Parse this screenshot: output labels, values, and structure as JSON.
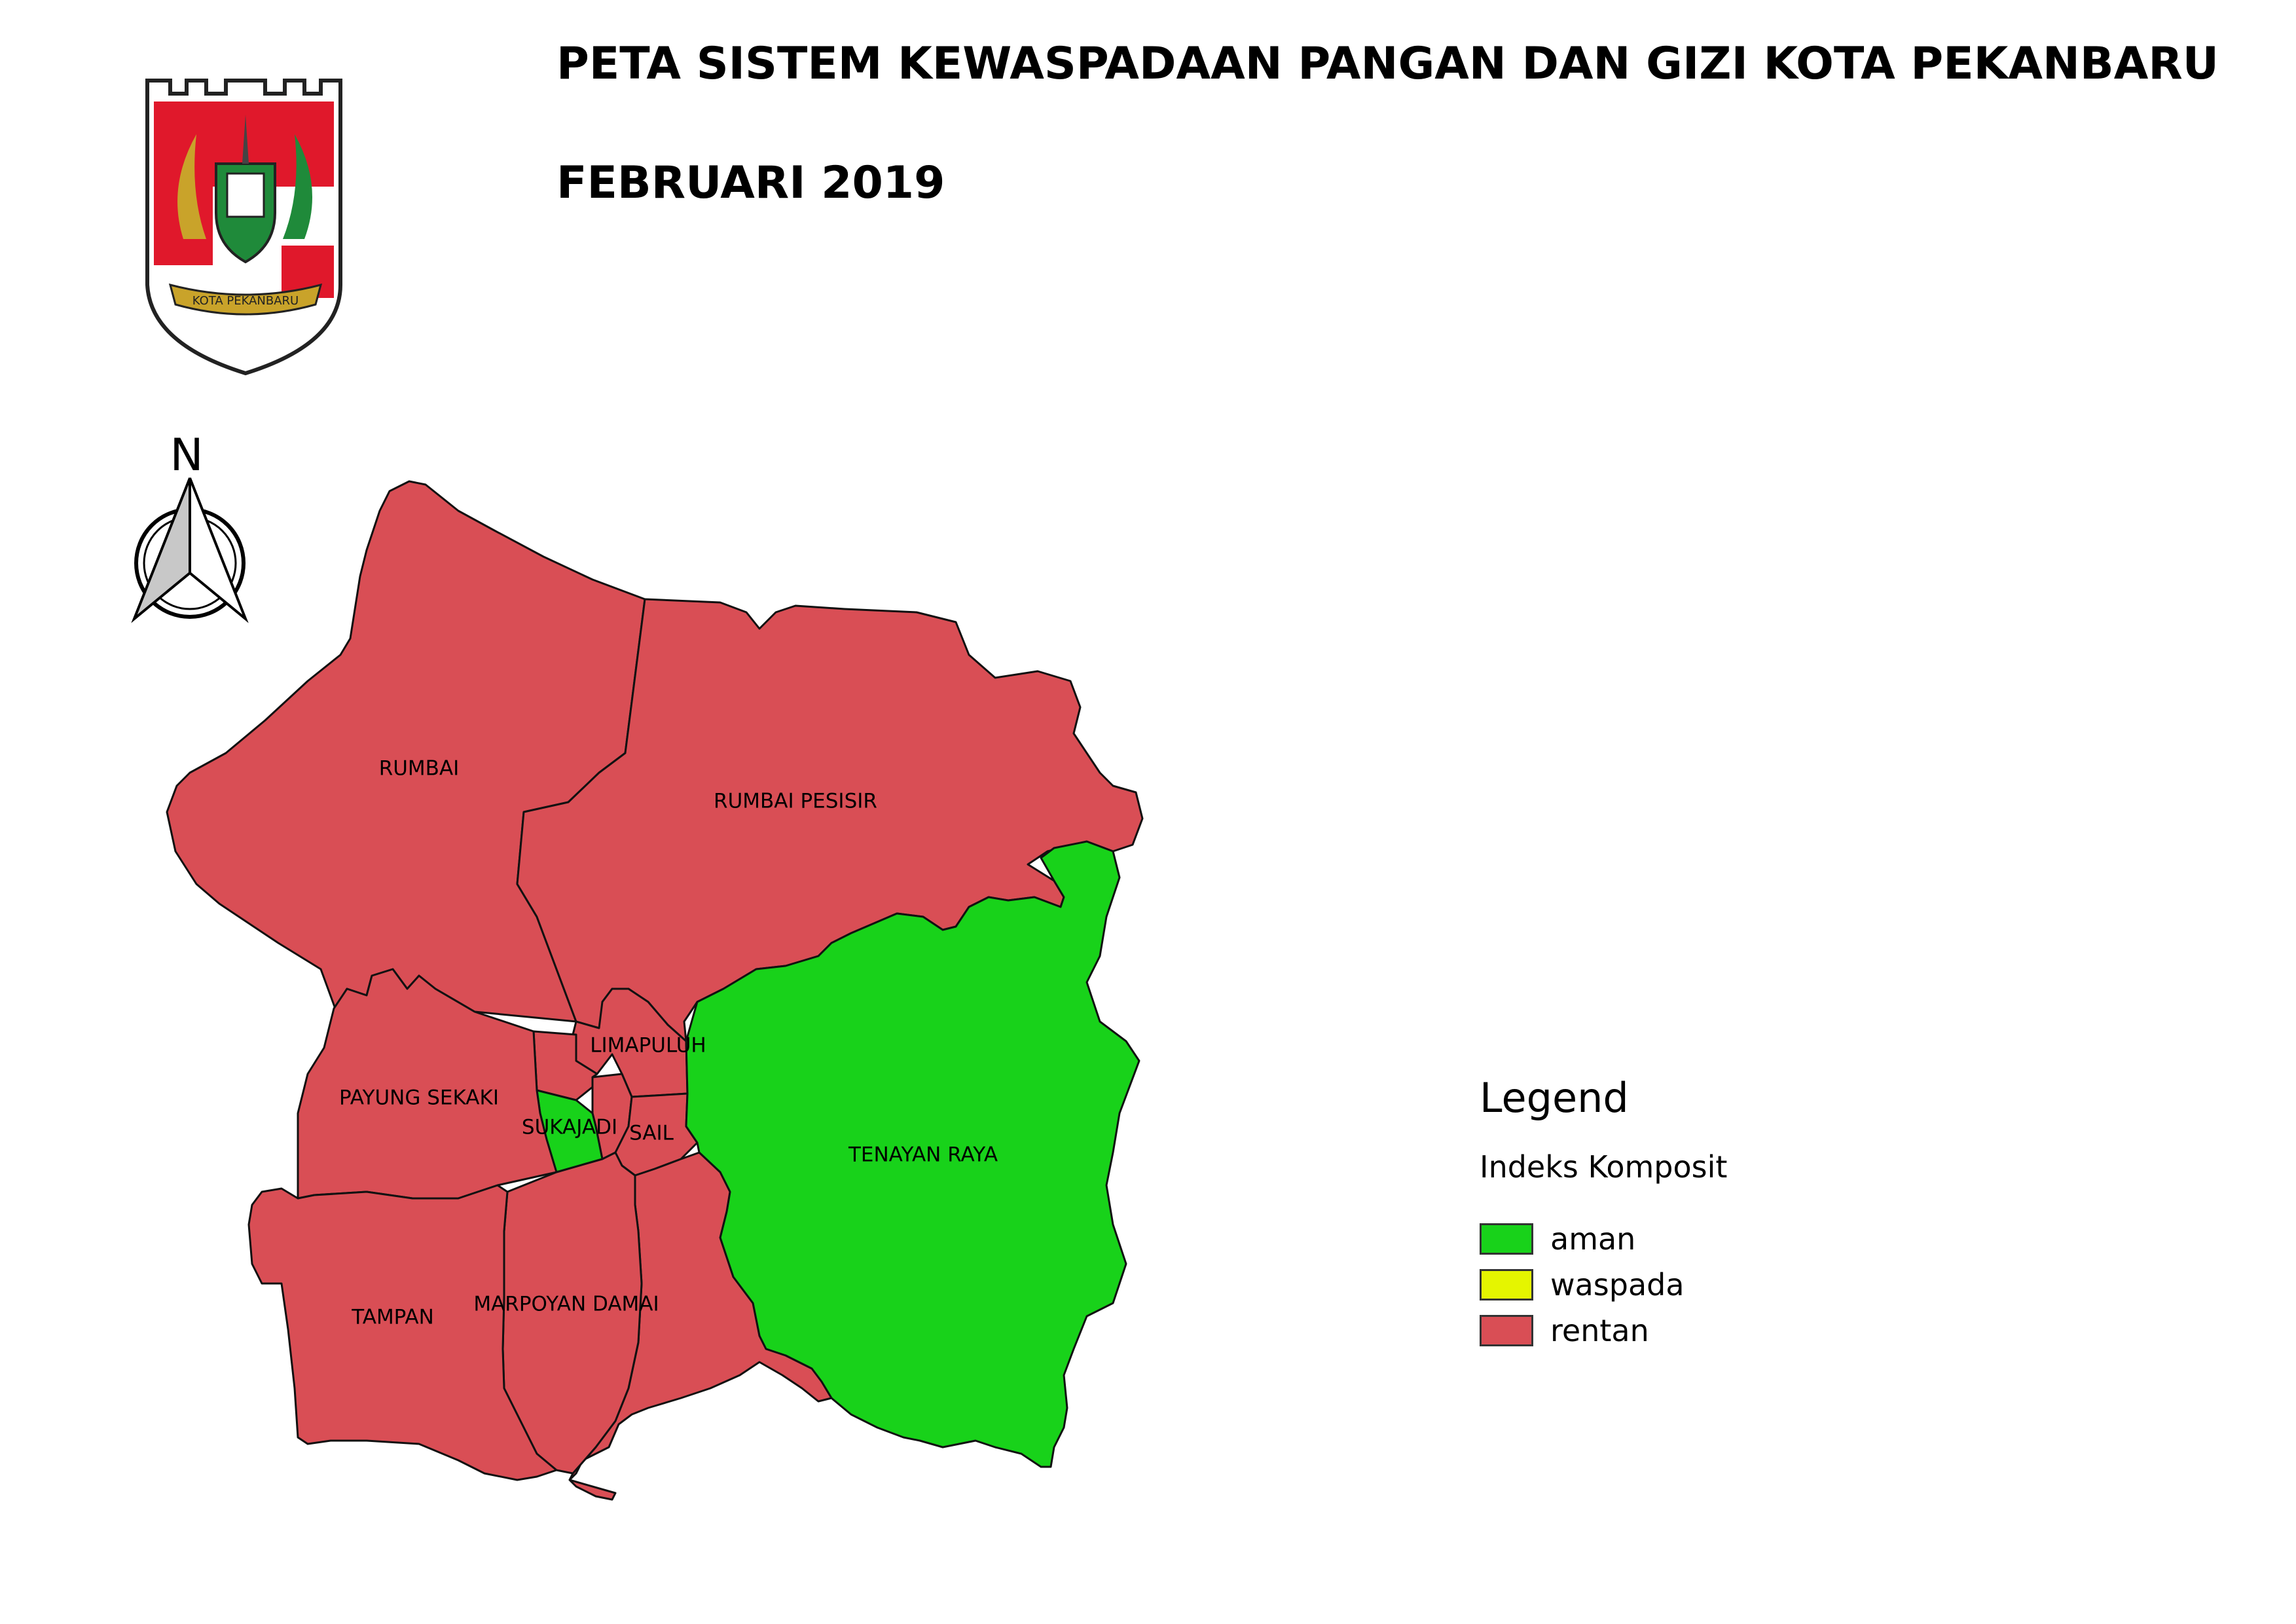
{
  "header": {
    "title": "PETA SISTEM KEWASPADAAN PANGAN DAN GIZI KOTA PEKANBARU",
    "subtitle": "FEBRUARI 2019"
  },
  "logo": {
    "text": "KOTA PEKANBARU",
    "colors": {
      "red": "#e0182b",
      "gold": "#c9a32a",
      "green": "#1f8a3a",
      "outline": "#222222"
    }
  },
  "north_arrow": {
    "label": "N"
  },
  "map": {
    "colors": {
      "aman": "#18d21a",
      "waspada": "#e5f500",
      "rentan": "#d94e55"
    },
    "districts": [
      {
        "id": "rumbai",
        "name": "RUMBAI",
        "status": "rentan"
      },
      {
        "id": "rumbai-pesisir",
        "name": "RUMBAI PESISIR",
        "status": "rentan"
      },
      {
        "id": "limapuluh",
        "name": "LIMAPULUH",
        "status": "rentan"
      },
      {
        "id": "pekanbaru-kota",
        "name": "",
        "status": "rentan"
      },
      {
        "id": "senapelan",
        "name": "",
        "status": "rentan"
      },
      {
        "id": "payung-sekaki",
        "name": "PAYUNG SEKAKI",
        "status": "rentan"
      },
      {
        "id": "sukajadi",
        "name": "SUKAJADI",
        "status": "aman"
      },
      {
        "id": "sail",
        "name": "SAIL",
        "status": "rentan"
      },
      {
        "id": "tenayan-raya",
        "name": "TENAYAN RAYA",
        "status": "aman"
      },
      {
        "id": "tampan",
        "name": "TAMPAN",
        "status": "rentan"
      },
      {
        "id": "marpoyan-damai",
        "name": "MARPOYAN DAMAI",
        "status": "rentan"
      },
      {
        "id": "bukit-raya",
        "name": "",
        "status": "rentan"
      }
    ]
  },
  "legend": {
    "title": "Legend",
    "subtitle": "Indeks Komposit",
    "items": [
      {
        "label": "aman",
        "color": "#18d21a"
      },
      {
        "label": "waspada",
        "color": "#e5f500"
      },
      {
        "label": "rentan",
        "color": "#d94e55"
      }
    ]
  }
}
